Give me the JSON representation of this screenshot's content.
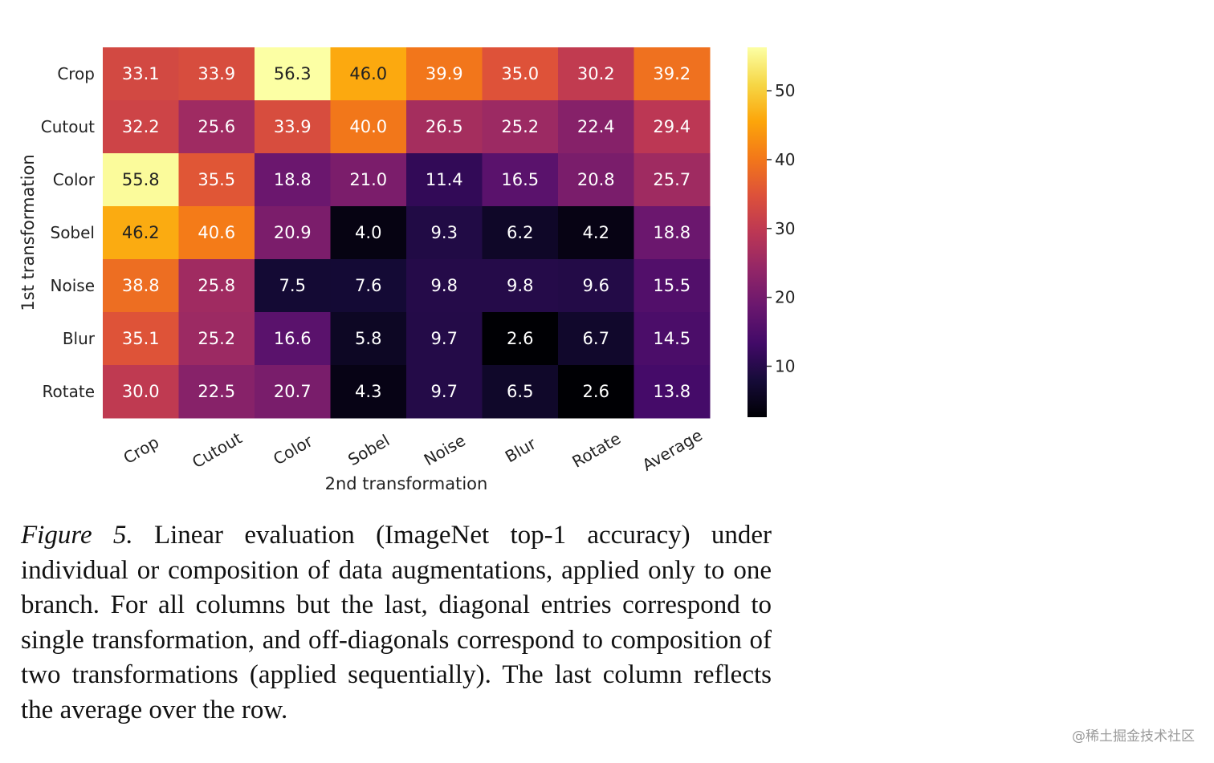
{
  "chart_data": {
    "type": "heatmap",
    "rows": [
      "Crop",
      "Cutout",
      "Color",
      "Sobel",
      "Noise",
      "Blur",
      "Rotate"
    ],
    "columns": [
      "Crop",
      "Cutout",
      "Color",
      "Sobel",
      "Noise",
      "Blur",
      "Rotate",
      "Average"
    ],
    "values": [
      [
        33.1,
        33.9,
        56.3,
        46.0,
        39.9,
        35.0,
        30.2,
        39.2
      ],
      [
        32.2,
        25.6,
        33.9,
        40.0,
        26.5,
        25.2,
        22.4,
        29.4
      ],
      [
        55.8,
        35.5,
        18.8,
        21.0,
        11.4,
        16.5,
        20.8,
        25.7
      ],
      [
        46.2,
        40.6,
        20.9,
        4.0,
        9.3,
        6.2,
        4.2,
        18.8
      ],
      [
        38.8,
        25.8,
        7.5,
        7.6,
        9.8,
        9.8,
        9.6,
        15.5
      ],
      [
        35.1,
        25.2,
        16.6,
        5.8,
        9.7,
        2.6,
        6.7,
        14.5
      ],
      [
        30.0,
        22.5,
        20.7,
        4.3,
        9.7,
        6.5,
        2.6,
        13.8
      ]
    ],
    "labels": [
      [
        "33.1",
        "33.9",
        "56.3",
        "46.0",
        "39.9",
        "35.0",
        "30.2",
        "39.2"
      ],
      [
        "32.2",
        "25.6",
        "33.9",
        "40.0",
        "26.5",
        "25.2",
        "22.4",
        "29.4"
      ],
      [
        "55.8",
        "35.5",
        "18.8",
        "21.0",
        "11.4",
        "16.5",
        "20.8",
        "25.7"
      ],
      [
        "46.2",
        "40.6",
        "20.9",
        "4.0",
        "9.3",
        "6.2",
        "4.2",
        "18.8"
      ],
      [
        "38.8",
        "25.8",
        "7.5",
        "7.6",
        "9.8",
        "9.8",
        "9.6",
        "15.5"
      ],
      [
        "35.1",
        "25.2",
        "16.6",
        "5.8",
        "9.7",
        "2.6",
        "6.7",
        "14.5"
      ],
      [
        "30.0",
        "22.5",
        "20.7",
        "4.3",
        "9.7",
        "6.5",
        "2.6",
        "13.8"
      ]
    ],
    "xlabel": "2nd transformation",
    "ylabel": "1st transformation",
    "colormap": "inferno",
    "vmin": 2.6,
    "vmax": 56.3,
    "colorbar_ticks": [
      10,
      20,
      30,
      40,
      50
    ],
    "colorbar_tick_labels": [
      "10",
      "20",
      "30",
      "40",
      "50"
    ],
    "colorbar_position": "right"
  },
  "caption": {
    "figure_label": "Figure 5.",
    "text": "Linear evaluation (ImageNet top-1 accuracy) under individual or composition of data augmentations, applied only to one branch. For all columns but the last, diagonal entries correspond to single transformation, and off-diagonals correspond to composition of two transformations (applied sequentially). The last column reflects the average over the row."
  },
  "watermark": "@稀土掘金技术社区"
}
